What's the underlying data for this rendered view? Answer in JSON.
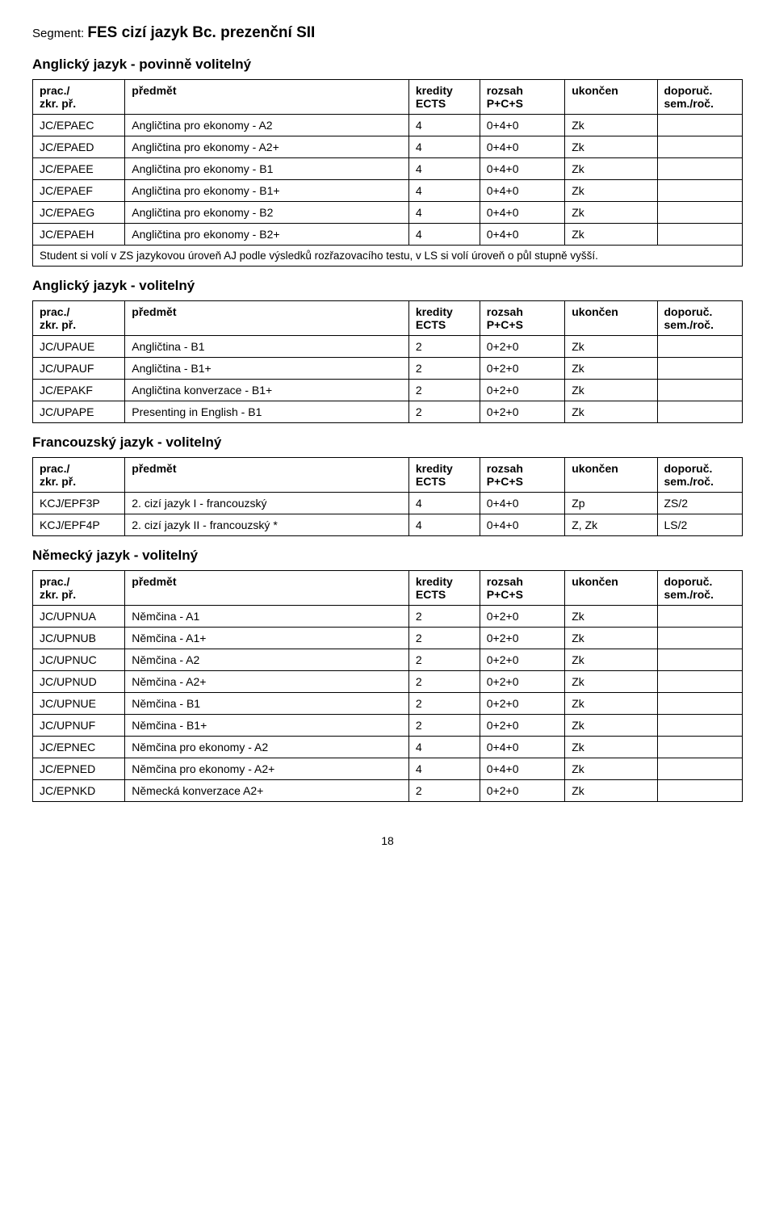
{
  "segment_label": "Segment: ",
  "segment_value": "FES cizí jazyk Bc. prezenční SII",
  "columns": {
    "code": "prac./\nzkr. př.",
    "predmet": "předmět",
    "kredity": "kredity\nECTS",
    "rozsah": "rozsah\nP+C+S",
    "ukoncen": "ukončen",
    "doporuc": "doporuč.\nsem./roč."
  },
  "sections": [
    {
      "title": "Anglický jazyk - povinně volitelný",
      "rows": [
        {
          "code": "JC/EPAEC",
          "pred": "Angličtina pro ekonomy - A2",
          "k": "4",
          "r": "0+4+0",
          "u": "Zk",
          "d": ""
        },
        {
          "code": "JC/EPAED",
          "pred": "Angličtina pro ekonomy - A2+",
          "k": "4",
          "r": "0+4+0",
          "u": "Zk",
          "d": ""
        },
        {
          "code": "JC/EPAEE",
          "pred": "Angličtina pro ekonomy - B1",
          "k": "4",
          "r": "0+4+0",
          "u": "Zk",
          "d": ""
        },
        {
          "code": "JC/EPAEF",
          "pred": "Angličtina pro ekonomy - B1+",
          "k": "4",
          "r": "0+4+0",
          "u": "Zk",
          "d": ""
        },
        {
          "code": "JC/EPAEG",
          "pred": "Angličtina pro ekonomy - B2",
          "k": "4",
          "r": "0+4+0",
          "u": "Zk",
          "d": ""
        },
        {
          "code": "JC/EPAEH",
          "pred": "Angličtina pro ekonomy - B2+",
          "k": "4",
          "r": "0+4+0",
          "u": "Zk",
          "d": ""
        }
      ],
      "note": "Student si volí v ZS jazykovou úroveň AJ podle výsledků rozřazovacího testu, v LS si volí úroveň o půl stupně vyšší."
    },
    {
      "title": "Anglický jazyk - volitelný",
      "rows": [
        {
          "code": "JC/UPAUE",
          "pred": "Angličtina - B1",
          "k": "2",
          "r": "0+2+0",
          "u": "Zk",
          "d": ""
        },
        {
          "code": "JC/UPAUF",
          "pred": "Angličtina - B1+",
          "k": "2",
          "r": "0+2+0",
          "u": "Zk",
          "d": ""
        },
        {
          "code": "JC/EPAKF",
          "pred": "Angličtina konverzace - B1+",
          "k": "2",
          "r": "0+2+0",
          "u": "Zk",
          "d": ""
        },
        {
          "code": "JC/UPAPE",
          "pred": "Presenting in English - B1",
          "k": "2",
          "r": "0+2+0",
          "u": "Zk",
          "d": ""
        }
      ]
    },
    {
      "title": "Francouzský jazyk - volitelný",
      "rows": [
        {
          "code": "KCJ/EPF3P",
          "pred": "2. cizí jazyk I - francouzský",
          "k": "4",
          "r": "0+4+0",
          "u": "Zp",
          "d": "ZS/2"
        },
        {
          "code": "KCJ/EPF4P",
          "pred": "2. cizí jazyk II - francouzský *",
          "k": "4",
          "r": "0+4+0",
          "u": "Z, Zk",
          "d": "LS/2"
        }
      ]
    },
    {
      "title": "Německý jazyk - volitelný",
      "rows": [
        {
          "code": "JC/UPNUA",
          "pred": "Němčina - A1",
          "k": "2",
          "r": "0+2+0",
          "u": "Zk",
          "d": ""
        },
        {
          "code": "JC/UPNUB",
          "pred": "Němčina - A1+",
          "k": "2",
          "r": "0+2+0",
          "u": "Zk",
          "d": ""
        },
        {
          "code": "JC/UPNUC",
          "pred": "Němčina - A2",
          "k": "2",
          "r": "0+2+0",
          "u": "Zk",
          "d": ""
        },
        {
          "code": "JC/UPNUD",
          "pred": "Němčina - A2+",
          "k": "2",
          "r": "0+2+0",
          "u": "Zk",
          "d": ""
        },
        {
          "code": "JC/UPNUE",
          "pred": "Němčina - B1",
          "k": "2",
          "r": "0+2+0",
          "u": "Zk",
          "d": ""
        },
        {
          "code": "JC/UPNUF",
          "pred": "Němčina - B1+",
          "k": "2",
          "r": "0+2+0",
          "u": "Zk",
          "d": ""
        },
        {
          "code": "JC/EPNEC",
          "pred": "Němčina pro ekonomy - A2",
          "k": "4",
          "r": "0+4+0",
          "u": "Zk",
          "d": ""
        },
        {
          "code": "JC/EPNED",
          "pred": "Němčina pro ekonomy - A2+",
          "k": "4",
          "r": "0+4+0",
          "u": "Zk",
          "d": ""
        },
        {
          "code": "JC/EPNKD",
          "pred": "Německá konverzace A2+",
          "k": "2",
          "r": "0+2+0",
          "u": "Zk",
          "d": ""
        }
      ]
    }
  ],
  "page_number": "18"
}
